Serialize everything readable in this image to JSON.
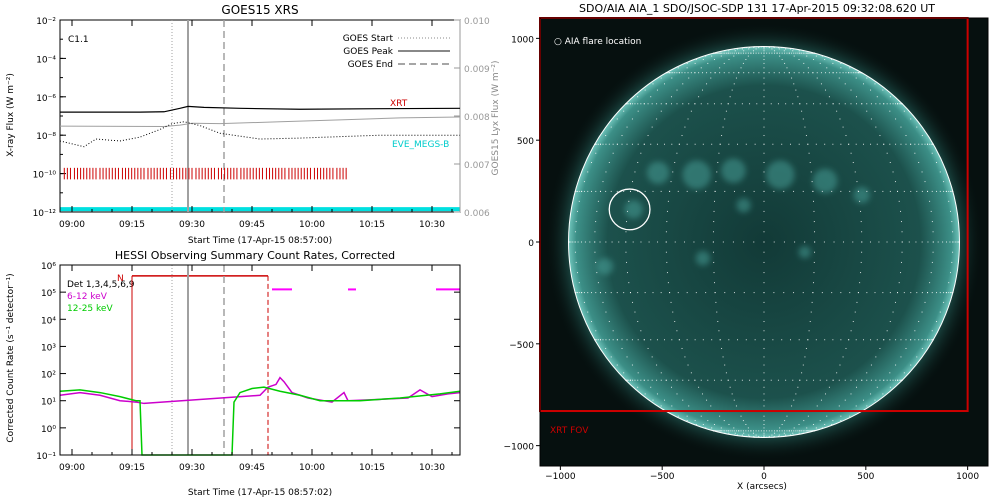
{
  "chart_data": [
    {
      "type": "line",
      "title": "GOES15 XRS",
      "xlabel": "Start Time (17-Apr-15 08:57:00)",
      "ylabel": "X-ray Flux (W m⁻²)",
      "y2label": "GOES15 Lyx Flux (W m⁻²)",
      "y_scale": "log",
      "ylim": [
        1e-12,
        0.01
      ],
      "y2lim": [
        0.006,
        0.01
      ],
      "xlim_min": [
        0,
        100
      ],
      "x_ticks": [
        "09:00",
        "09:15",
        "09:30",
        "09:45",
        "10:00",
        "10:15",
        "10:30"
      ],
      "x_tick_min": [
        3,
        18,
        33,
        48,
        63,
        78,
        93
      ],
      "y_ticks": [
        "10⁻¹²",
        "10⁻¹⁰",
        "10⁻⁸",
        "10⁻⁶",
        "10⁻⁴",
        "10⁻²"
      ],
      "y_tick_exp": [
        -12,
        -10,
        -8,
        -6,
        -4,
        -2
      ],
      "y2_ticks": [
        "0.006",
        "0.007",
        "0.008",
        "0.009",
        "0.010"
      ],
      "flare_class": "C1.1",
      "legend": [
        "GOES Start",
        "GOES Peak",
        "GOES End"
      ],
      "legend_position": "top-right",
      "event_lines_min": {
        "start": 28,
        "peak": 32,
        "end": 41
      },
      "series": [
        {
          "name": "XRT",
          "color": "#cc0000",
          "markers_min_range": [
            1,
            72
          ]
        },
        {
          "name": "EVE_MEGS-B",
          "color": "#00cccc"
        }
      ],
      "curves": {
        "xrs_long_log": [
          [
            0,
            -6.8
          ],
          [
            20,
            -6.8
          ],
          [
            26,
            -6.78
          ],
          [
            30,
            -6.6
          ],
          [
            32,
            -6.5
          ],
          [
            36,
            -6.55
          ],
          [
            45,
            -6.6
          ],
          [
            60,
            -6.65
          ],
          [
            80,
            -6.62
          ],
          [
            100,
            -6.6
          ]
        ],
        "xrs_short_log": [
          [
            0,
            -8.3
          ],
          [
            4,
            -8.5
          ],
          [
            6,
            -8.6
          ],
          [
            9,
            -8.2
          ],
          [
            15,
            -8.3
          ],
          [
            20,
            -8.1
          ],
          [
            25,
            -7.7
          ],
          [
            28,
            -7.4
          ],
          [
            31,
            -7.3
          ],
          [
            35,
            -7.5
          ],
          [
            40,
            -7.9
          ],
          [
            50,
            -8.2
          ],
          [
            60,
            -8.15
          ],
          [
            80,
            -8.0
          ],
          [
            100,
            -8.0
          ]
        ],
        "lyman_alpha": [
          [
            0,
            0.00779
          ],
          [
            26,
            0.00778
          ],
          [
            30,
            0.00781
          ],
          [
            33,
            0.00785
          ],
          [
            40,
            0.00784
          ],
          [
            55,
            0.00788
          ],
          [
            70,
            0.00792
          ],
          [
            85,
            0.00796
          ],
          [
            100,
            0.00798
          ]
        ],
        "eve_log": [
          [
            0,
            -11.85
          ],
          [
            100,
            -11.85
          ]
        ]
      }
    },
    {
      "type": "line",
      "title": "HESSI Observing Summary Count Rates, Corrected",
      "xlabel": "Start Time (17-Apr-15 08:57:02)",
      "ylabel": "Corrected Count Rate (s⁻¹ detector⁻¹)",
      "y_scale": "log",
      "ylim": [
        0.1,
        1000000.0
      ],
      "xlim_min": [
        0,
        100
      ],
      "x_ticks": [
        "09:00",
        "09:15",
        "09:30",
        "09:45",
        "10:00",
        "10:15",
        "10:30"
      ],
      "x_tick_min": [
        3,
        18,
        33,
        48,
        63,
        78,
        93
      ],
      "y_ticks": [
        "10⁻¹",
        "10⁰",
        "10¹",
        "10²",
        "10³",
        "10⁴",
        "10⁵",
        "10⁶"
      ],
      "y_tick_exp": [
        -1,
        0,
        1,
        2,
        3,
        4,
        5,
        6
      ],
      "legend_title": "Det 1,3,4,5,6,9",
      "legend_position": "top-left",
      "night_marker": "N",
      "night_min": [
        18,
        52
      ],
      "event_lines_min": {
        "start": 28,
        "peak": 32,
        "end": 41
      },
      "saa_bars_min": [
        [
          53,
          58
        ],
        [
          72,
          74
        ],
        [
          94,
          100
        ]
      ],
      "series": [
        {
          "name": "6-12 keV",
          "color": "#cc00cc",
          "points_log": [
            [
              0,
              1.2
            ],
            [
              5,
              1.3
            ],
            [
              10,
              1.2
            ],
            [
              15,
              1.0
            ],
            [
              19,
              0.95
            ],
            [
              21,
              0.9
            ],
            [
              50,
              1.2
            ],
            [
              52,
              1.5
            ],
            [
              54,
              1.6
            ],
            [
              55,
              1.85
            ],
            [
              56,
              1.7
            ],
            [
              58,
              1.3
            ],
            [
              62,
              1.1
            ],
            [
              68,
              0.95
            ],
            [
              71,
              1.3
            ],
            [
              72,
              1.0
            ],
            [
              80,
              1.05
            ],
            [
              87,
              1.1
            ],
            [
              90,
              1.4
            ],
            [
              93,
              1.15
            ],
            [
              97,
              1.25
            ],
            [
              100,
              1.3
            ]
          ]
        },
        {
          "name": "12-25 keV",
          "color": "#00cc00",
          "points_log": [
            [
              0,
              1.35
            ],
            [
              5,
              1.4
            ],
            [
              10,
              1.3
            ],
            [
              15,
              1.15
            ],
            [
              19,
              1.0
            ],
            [
              20,
              1.0
            ],
            [
              20.5,
              -1
            ],
            [
              43,
              -1
            ],
            [
              43.5,
              0.95
            ],
            [
              45,
              1.3
            ],
            [
              48,
              1.45
            ],
            [
              51,
              1.5
            ],
            [
              55,
              1.35
            ],
            [
              60,
              1.2
            ],
            [
              65,
              1.0
            ],
            [
              75,
              1.0
            ],
            [
              85,
              1.1
            ],
            [
              95,
              1.25
            ],
            [
              100,
              1.35
            ]
          ]
        }
      ]
    },
    {
      "type": "heatmap",
      "title": "SDO/AIA AIA_1 SDO/JSOC-SDP 131 17-Apr-2015 09:32:08.620 UT",
      "xlabel": "X (arcsecs)",
      "xlim": [
        -1100,
        1100
      ],
      "ylim": [
        -1100,
        1100
      ],
      "x_ticks": [
        "−1000",
        "−500",
        "0",
        "500",
        "1000"
      ],
      "x_tick_vals": [
        -1000,
        -500,
        0,
        500,
        1000
      ],
      "y_ticks": [
        "−1000",
        "−500",
        "0",
        "500",
        "1000"
      ],
      "y_tick_vals": [
        -1000,
        -500,
        0,
        500,
        1000
      ],
      "solar_radius_arcsec": 960,
      "flare_location_label": "○ AIA flare location",
      "flare_location_arcsec": [
        -660,
        160
      ],
      "flare_circle_radius_arcsec": 100,
      "xrt_fov_label": "XRT FOV",
      "xrt_fov_arcsec": [
        -1100,
        -830,
        1000,
        1100
      ]
    }
  ],
  "colors": {
    "axis": "#000000",
    "goes_long": "#000000",
    "goes_short": "#000000",
    "lyman": "#a0a0a0",
    "event_lines": "#a0a0a0",
    "night": "#cc0000",
    "saa": "#ff00ff",
    "xrt_fov": "#cc0000",
    "aia_bg": "#06100f",
    "aia_disk": "#1b4e4a",
    "aia_limb": "#4fa79f",
    "aia_axis": "#000000"
  }
}
